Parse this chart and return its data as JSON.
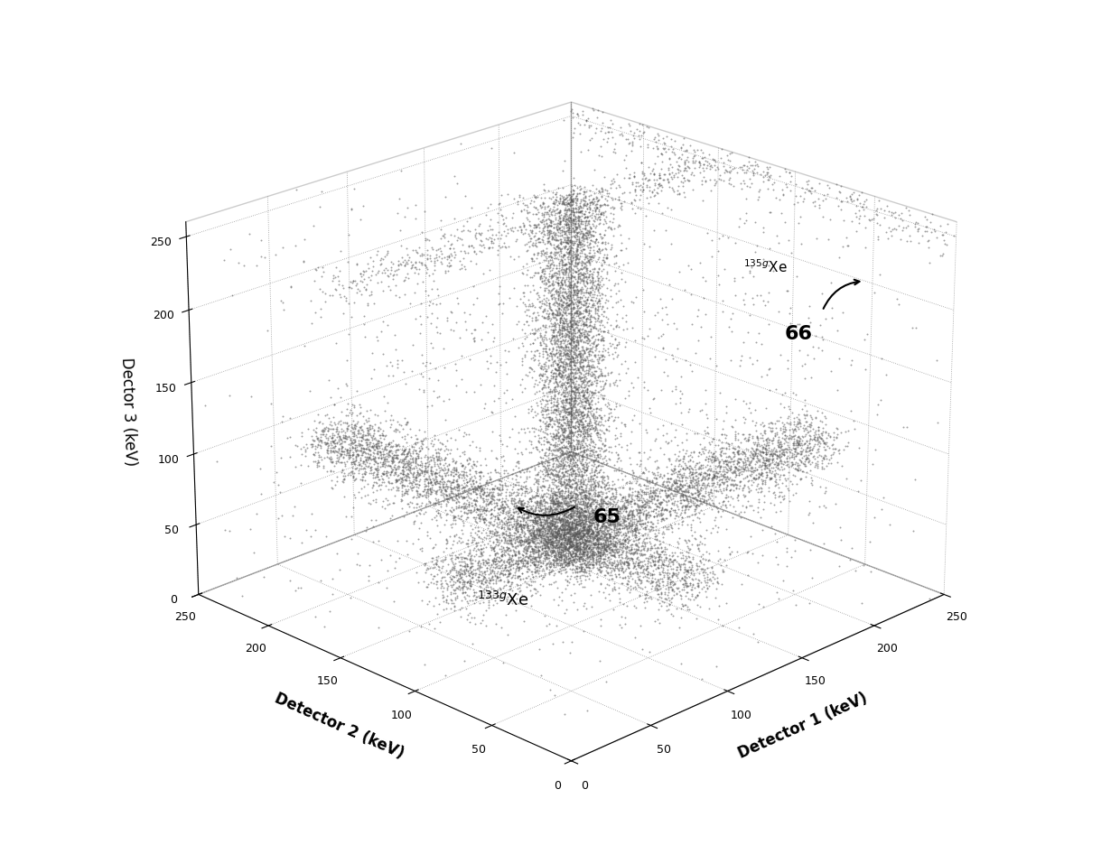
{
  "xlabel": "Detector 1 (keV)",
  "ylabel": "Detector 2 (keV)",
  "zlabel": "Dector 3 (keV)",
  "xlim": [
    0,
    250
  ],
  "ylim": [
    0,
    250
  ],
  "zlim": [
    0,
    260
  ],
  "xticks": [
    0,
    50,
    100,
    150,
    200,
    250
  ],
  "yticks": [
    0,
    50,
    100,
    150,
    200,
    250
  ],
  "zticks": [
    0,
    50,
    100,
    150,
    200,
    250
  ],
  "point_color": "#555555",
  "point_size": 2.0,
  "background_color": "#ffffff",
  "seed": 42,
  "elev": 22,
  "azim": 225,
  "xe133_d3": 81,
  "xe133_d1": 81,
  "xe133_d2": 81,
  "vert_d1": 150,
  "vert_d2": 150,
  "xe135_d1": 250,
  "xe135_d3": 250
}
